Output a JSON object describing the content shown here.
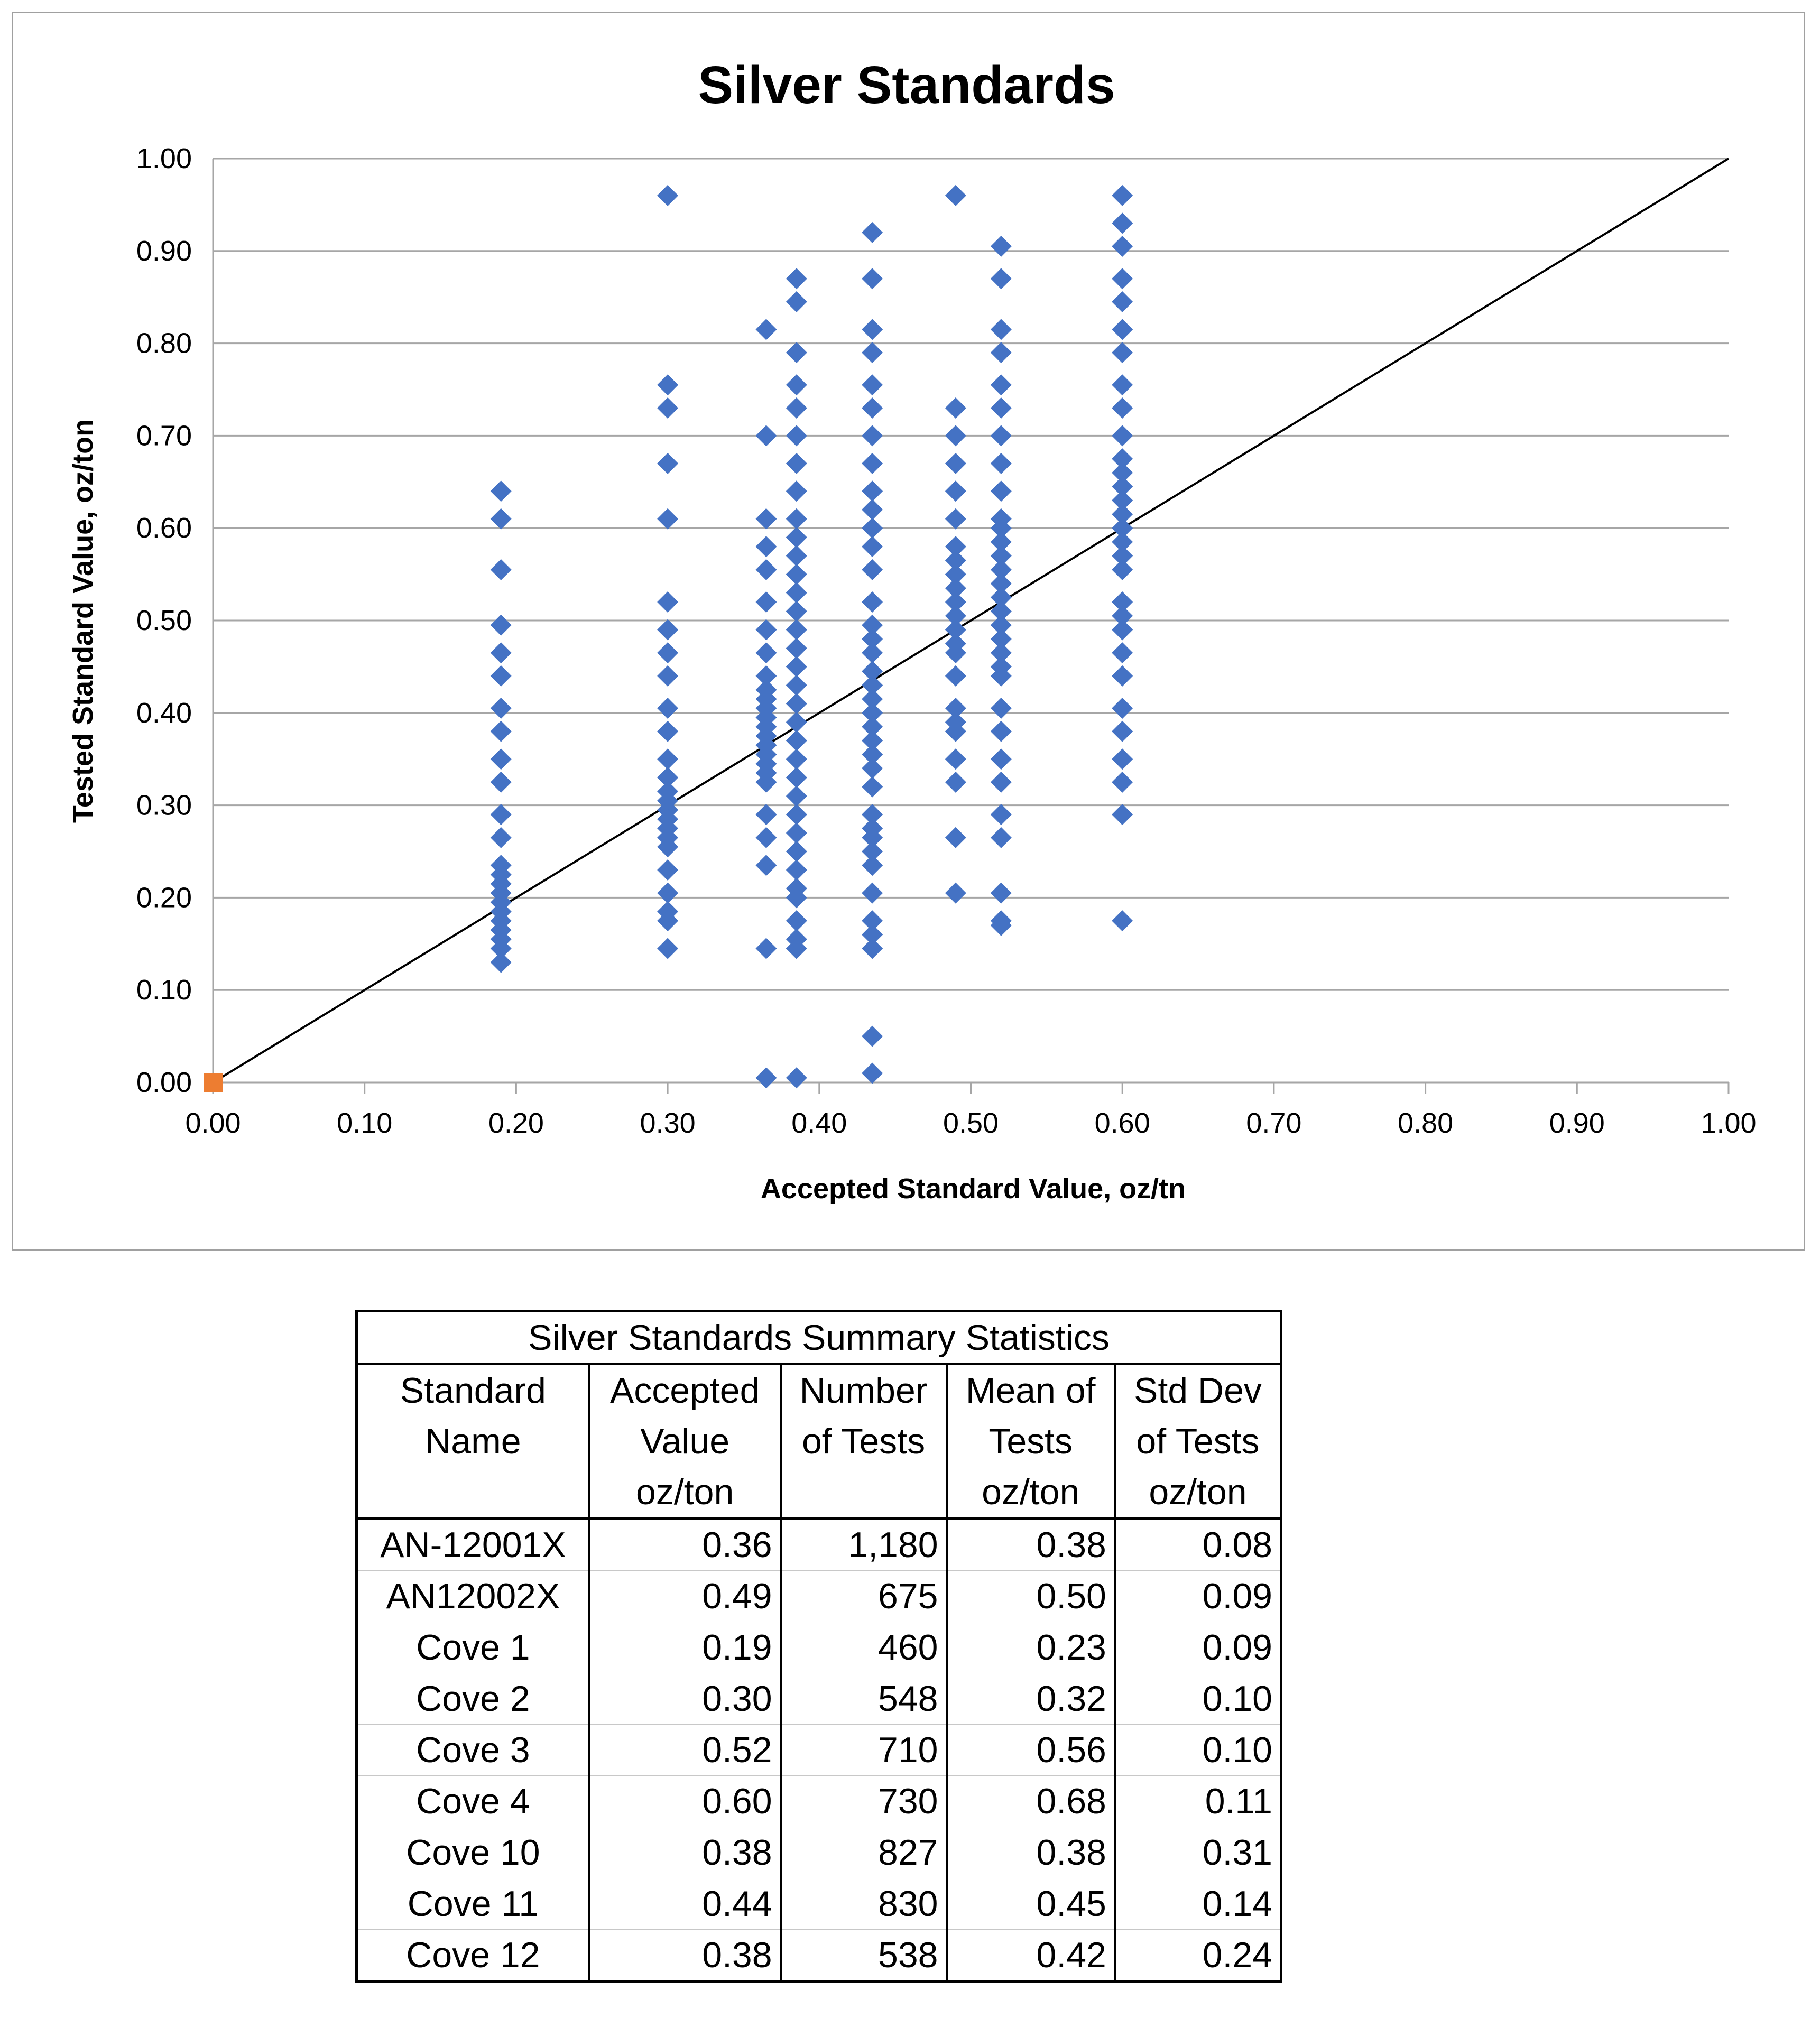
{
  "chart_data": {
    "type": "scatter",
    "title": "Silver Standards",
    "xlabel": "Accepted Standard Value, oz/tn",
    "ylabel": "Tested Standard Value, oz/ton",
    "xlim": [
      0,
      1
    ],
    "ylim": [
      0,
      1
    ],
    "x_ticks": [
      "0.00",
      "0.10",
      "0.20",
      "0.30",
      "0.40",
      "0.50",
      "0.60",
      "0.70",
      "0.80",
      "0.90",
      "1.00"
    ],
    "y_ticks": [
      "0.00",
      "0.10",
      "0.20",
      "0.30",
      "0.40",
      "0.50",
      "0.60",
      "0.70",
      "0.80",
      "0.90",
      "1.00"
    ],
    "grid": "horizontal",
    "legend": "none",
    "colors": {
      "points": "#4472C4",
      "origin_marker": "#ED7D31",
      "reference_line": "#000000"
    },
    "reference_line": {
      "x": [
        0,
        1
      ],
      "y": [
        0,
        1
      ]
    },
    "origin_marker": {
      "x": 0,
      "y": 0
    },
    "series": [
      {
        "x": 0.19,
        "y": [
          0.64,
          0.61,
          0.555,
          0.495,
          0.465,
          0.44,
          0.405,
          0.38,
          0.35,
          0.325,
          0.29,
          0.265,
          0.235,
          0.225,
          0.215,
          0.205,
          0.195,
          0.185,
          0.175,
          0.165,
          0.155,
          0.145,
          0.13
        ]
      },
      {
        "x": 0.3,
        "y": [
          0.96,
          0.755,
          0.73,
          0.67,
          0.61,
          0.52,
          0.49,
          0.465,
          0.44,
          0.405,
          0.38,
          0.35,
          0.33,
          0.315,
          0.305,
          0.295,
          0.285,
          0.275,
          0.265,
          0.255,
          0.23,
          0.205,
          0.185,
          0.175,
          0.145
        ]
      },
      {
        "x": 0.365,
        "y": [
          0.815,
          0.7,
          0.61,
          0.58,
          0.555,
          0.52,
          0.49,
          0.465,
          0.44,
          0.425,
          0.415,
          0.405,
          0.395,
          0.385,
          0.375,
          0.365,
          0.355,
          0.345,
          0.335,
          0.325,
          0.29,
          0.265,
          0.235,
          0.145,
          0.005
        ]
      },
      {
        "x": 0.385,
        "y": [
          0.87,
          0.845,
          0.79,
          0.755,
          0.73,
          0.7,
          0.67,
          0.64,
          0.61,
          0.59,
          0.57,
          0.55,
          0.53,
          0.51,
          0.49,
          0.47,
          0.45,
          0.43,
          0.41,
          0.39,
          0.37,
          0.35,
          0.33,
          0.31,
          0.29,
          0.27,
          0.25,
          0.23,
          0.21,
          0.2,
          0.175,
          0.155,
          0.145,
          0.005
        ]
      },
      {
        "x": 0.435,
        "y": [
          0.92,
          0.87,
          0.815,
          0.79,
          0.755,
          0.73,
          0.7,
          0.67,
          0.64,
          0.62,
          0.6,
          0.58,
          0.555,
          0.52,
          0.495,
          0.48,
          0.465,
          0.445,
          0.43,
          0.415,
          0.4,
          0.385,
          0.37,
          0.355,
          0.34,
          0.32,
          0.29,
          0.275,
          0.265,
          0.25,
          0.235,
          0.205,
          0.175,
          0.16,
          0.145,
          0.05,
          0.01
        ]
      },
      {
        "x": 0.49,
        "y": [
          0.96,
          0.73,
          0.7,
          0.67,
          0.64,
          0.61,
          0.58,
          0.565,
          0.55,
          0.535,
          0.52,
          0.505,
          0.49,
          0.475,
          0.465,
          0.44,
          0.405,
          0.39,
          0.38,
          0.35,
          0.325,
          0.265,
          0.205
        ]
      },
      {
        "x": 0.52,
        "y": [
          0.905,
          0.87,
          0.815,
          0.79,
          0.755,
          0.73,
          0.7,
          0.67,
          0.64,
          0.61,
          0.6,
          0.585,
          0.57,
          0.555,
          0.54,
          0.525,
          0.51,
          0.495,
          0.48,
          0.465,
          0.45,
          0.44,
          0.405,
          0.38,
          0.35,
          0.325,
          0.29,
          0.265,
          0.205,
          0.175,
          0.17
        ]
      },
      {
        "x": 0.6,
        "y": [
          0.96,
          0.93,
          0.905,
          0.87,
          0.845,
          0.815,
          0.79,
          0.755,
          0.73,
          0.7,
          0.675,
          0.66,
          0.645,
          0.63,
          0.615,
          0.6,
          0.585,
          0.57,
          0.555,
          0.52,
          0.505,
          0.49,
          0.465,
          0.44,
          0.405,
          0.38,
          0.35,
          0.325,
          0.29,
          0.175
        ]
      }
    ]
  },
  "table": {
    "caption": "Silver Standards Summary Statistics",
    "headers": [
      [
        "Standard",
        "Accepted",
        "Number",
        "Mean of",
        "Std Dev"
      ],
      [
        "Name",
        "Value",
        "of Tests",
        "Tests",
        "of Tests"
      ],
      [
        "",
        "oz/ton",
        "",
        "oz/ton",
        "oz/ton"
      ]
    ],
    "rows": [
      [
        "AN-12001X",
        "0.36",
        "1,180",
        "0.38",
        "0.08"
      ],
      [
        "AN12002X",
        "0.49",
        "675",
        "0.50",
        "0.09"
      ],
      [
        "Cove 1",
        "0.19",
        "460",
        "0.23",
        "0.09"
      ],
      [
        "Cove 2",
        "0.30",
        "548",
        "0.32",
        "0.10"
      ],
      [
        "Cove 3",
        "0.52",
        "710",
        "0.56",
        "0.10"
      ],
      [
        "Cove 4",
        "0.60",
        "730",
        "0.68",
        "0.11"
      ],
      [
        "Cove 10",
        "0.38",
        "827",
        "0.38",
        "0.31"
      ],
      [
        "Cove 11",
        "0.44",
        "830",
        "0.45",
        "0.14"
      ],
      [
        "Cove 12",
        "0.38",
        "538",
        "0.42",
        "0.24"
      ]
    ]
  }
}
